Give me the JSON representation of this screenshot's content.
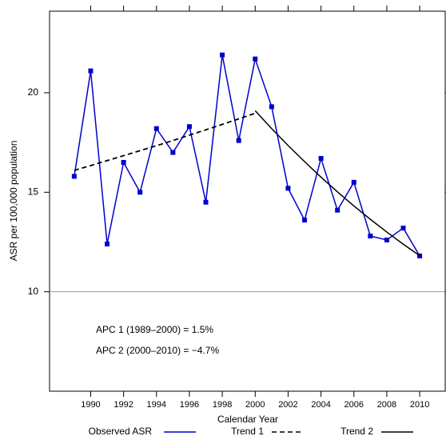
{
  "chart_data": {
    "type": "line",
    "x_label": "Calendar Year",
    "y_label": "ASR per 100,000 population",
    "xlim": [
      1987.5,
      2011.55
    ],
    "ylim": [
      5,
      24.1
    ],
    "xticks": [
      1990,
      1992,
      1994,
      1996,
      1998,
      2000,
      2002,
      2004,
      2006,
      2008,
      2010
    ],
    "yticks": [
      10,
      15,
      20
    ],
    "reference_line": 10,
    "series": [
      {
        "name": "Observed ASR",
        "color": "#0000cc",
        "style": "solid",
        "markers": true,
        "x": [
          1989,
          1990,
          1991,
          1992,
          1993,
          1994,
          1995,
          1996,
          1997,
          1998,
          1999,
          2000,
          2001,
          2002,
          2003,
          2004,
          2005,
          2006,
          2007,
          2008,
          2009,
          2010
        ],
        "values": [
          15.8,
          21.1,
          12.4,
          16.5,
          15.0,
          18.2,
          17.0,
          18.3,
          14.5,
          21.9,
          17.6,
          21.7,
          19.3,
          15.2,
          13.6,
          16.7,
          14.1,
          15.5,
          12.8,
          12.6,
          13.2,
          11.8
        ]
      },
      {
        "name": "Trend 1",
        "color": "#000000",
        "style": "dashed",
        "markers": false,
        "x": [
          1989,
          1990,
          1991,
          1992,
          1993,
          1994,
          1995,
          1996,
          1997,
          1998,
          1999,
          2000
        ],
        "values": [
          16.1,
          16.34,
          16.59,
          16.84,
          17.09,
          17.34,
          17.6,
          17.87,
          18.14,
          18.41,
          18.69,
          18.97
        ]
      },
      {
        "name": "Trend 2",
        "color": "#000000",
        "style": "solid",
        "markers": false,
        "x": [
          2000,
          2001,
          2002,
          2003,
          2004,
          2005,
          2006,
          2007,
          2008,
          2009,
          2010
        ],
        "values": [
          19.1,
          18.2,
          17.35,
          16.54,
          15.76,
          15.02,
          14.31,
          13.64,
          13.0,
          12.39,
          11.81
        ]
      }
    ],
    "annotations": [
      "APC 1 (1989–2000) =  1.5%",
      "APC 2 (2000–2010) = −4.7%"
    ]
  }
}
